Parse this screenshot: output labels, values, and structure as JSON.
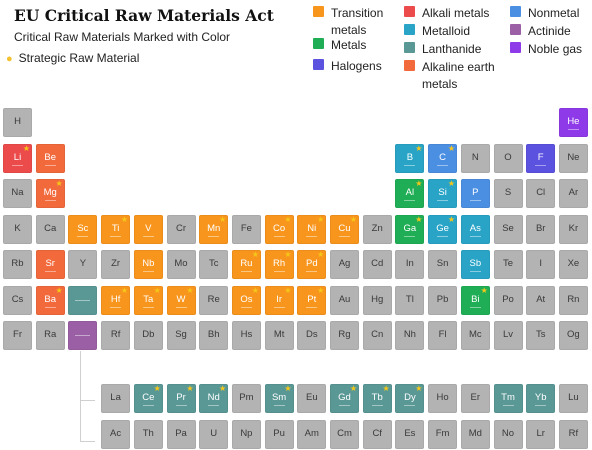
{
  "title": "EU Critical Raw Materials Act",
  "subtitle": "Critical Raw Materials Marked with Color",
  "strategic_label": "Strategic Raw Material",
  "colors": {
    "transition": "#f8951d",
    "alkali": "#ec4b4b",
    "nonmetal": "#4b8fe2",
    "metals": "#1fae55",
    "metalloid": "#29a4c7",
    "actinide": "#9a5fa4",
    "halogen": "#5b52e0",
    "lanthanide": "#5a9896",
    "noble": "#8f3ae8",
    "alkaline": "#f2693c",
    "neutral": "#b3b3b3",
    "star": "#f5c71a"
  },
  "legend": [
    {
      "key": "transition",
      "label": "Transition metals"
    },
    {
      "key": "alkali",
      "label": "Alkali metals"
    },
    {
      "key": "nonmetal",
      "label": "Nonmetal"
    },
    {
      "key": "metals",
      "label": "Metals"
    },
    {
      "key": "metalloid",
      "label": "Metalloid"
    },
    {
      "key": "actinide",
      "label": "Actinide"
    },
    {
      "key": "halogen",
      "label": "Halogens"
    },
    {
      "key": "lanthanide",
      "label": "Lanthanide"
    },
    {
      "key": "noble",
      "label": "Noble gas"
    },
    {
      "key": "alkaline",
      "label": "Alkaline earth metals"
    }
  ],
  "elements": [
    {
      "s": "H",
      "r": 1,
      "c": 1
    },
    {
      "s": "He",
      "r": 1,
      "c": 18,
      "cat": "noble"
    },
    {
      "s": "Li",
      "r": 2,
      "c": 1,
      "cat": "alkali",
      "star": true
    },
    {
      "s": "Be",
      "r": 2,
      "c": 2,
      "cat": "alkaline"
    },
    {
      "s": "B",
      "r": 2,
      "c": 13,
      "cat": "metalloid",
      "star": true
    },
    {
      "s": "C",
      "r": 2,
      "c": 14,
      "cat": "nonmetal",
      "star": true
    },
    {
      "s": "N",
      "r": 2,
      "c": 15
    },
    {
      "s": "O",
      "r": 2,
      "c": 16
    },
    {
      "s": "F",
      "r": 2,
      "c": 17,
      "cat": "halogen"
    },
    {
      "s": "Ne",
      "r": 2,
      "c": 18
    },
    {
      "s": "Na",
      "r": 3,
      "c": 1
    },
    {
      "s": "Mg",
      "r": 3,
      "c": 2,
      "cat": "alkaline",
      "star": true
    },
    {
      "s": "Al",
      "r": 3,
      "c": 13,
      "cat": "metals",
      "star": true
    },
    {
      "s": "Si",
      "r": 3,
      "c": 14,
      "cat": "metalloid",
      "star": true
    },
    {
      "s": "P",
      "r": 3,
      "c": 15,
      "cat": "nonmetal"
    },
    {
      "s": "S",
      "r": 3,
      "c": 16
    },
    {
      "s": "Cl",
      "r": 3,
      "c": 17
    },
    {
      "s": "Ar",
      "r": 3,
      "c": 18
    },
    {
      "s": "K",
      "r": 4,
      "c": 1
    },
    {
      "s": "Ca",
      "r": 4,
      "c": 2
    },
    {
      "s": "Sc",
      "r": 4,
      "c": 3,
      "cat": "transition"
    },
    {
      "s": "Ti",
      "r": 4,
      "c": 4,
      "cat": "transition",
      "star": true
    },
    {
      "s": "V",
      "r": 4,
      "c": 5,
      "cat": "transition"
    },
    {
      "s": "Cr",
      "r": 4,
      "c": 6
    },
    {
      "s": "Mn",
      "r": 4,
      "c": 7,
      "cat": "transition",
      "star": true
    },
    {
      "s": "Fe",
      "r": 4,
      "c": 8
    },
    {
      "s": "Co",
      "r": 4,
      "c": 9,
      "cat": "transition",
      "star": true
    },
    {
      "s": "Ni",
      "r": 4,
      "c": 10,
      "cat": "transition",
      "star": true
    },
    {
      "s": "Cu",
      "r": 4,
      "c": 11,
      "cat": "transition",
      "star": true
    },
    {
      "s": "Zn",
      "r": 4,
      "c": 12
    },
    {
      "s": "Ga",
      "r": 4,
      "c": 13,
      "cat": "metals",
      "star": true
    },
    {
      "s": "Ge",
      "r": 4,
      "c": 14,
      "cat": "metalloid",
      "star": true
    },
    {
      "s": "As",
      "r": 4,
      "c": 15,
      "cat": "metalloid"
    },
    {
      "s": "Se",
      "r": 4,
      "c": 16
    },
    {
      "s": "Br",
      "r": 4,
      "c": 17
    },
    {
      "s": "Kr",
      "r": 4,
      "c": 18
    },
    {
      "s": "Rb",
      "r": 5,
      "c": 1
    },
    {
      "s": "Sr",
      "r": 5,
      "c": 2,
      "cat": "alkaline"
    },
    {
      "s": "Y",
      "r": 5,
      "c": 3
    },
    {
      "s": "Zr",
      "r": 5,
      "c": 4
    },
    {
      "s": "Nb",
      "r": 5,
      "c": 5,
      "cat": "transition"
    },
    {
      "s": "Mo",
      "r": 5,
      "c": 6
    },
    {
      "s": "Tc",
      "r": 5,
      "c": 7
    },
    {
      "s": "Ru",
      "r": 5,
      "c": 8,
      "cat": "transition",
      "star": true
    },
    {
      "s": "Rh",
      "r": 5,
      "c": 9,
      "cat": "transition",
      "star": true
    },
    {
      "s": "Pd",
      "r": 5,
      "c": 10,
      "cat": "transition",
      "star": true
    },
    {
      "s": "Ag",
      "r": 5,
      "c": 11
    },
    {
      "s": "Cd",
      "r": 5,
      "c": 12
    },
    {
      "s": "In",
      "r": 5,
      "c": 13
    },
    {
      "s": "Sn",
      "r": 5,
      "c": 14
    },
    {
      "s": "Sb",
      "r": 5,
      "c": 15,
      "cat": "metalloid"
    },
    {
      "s": "Te",
      "r": 5,
      "c": 16
    },
    {
      "s": "I",
      "r": 5,
      "c": 17
    },
    {
      "s": "Xe",
      "r": 5,
      "c": 18
    },
    {
      "s": "Cs",
      "r": 6,
      "c": 1
    },
    {
      "s": "Ba",
      "r": 6,
      "c": 2,
      "cat": "alkaline",
      "star": true
    },
    {
      "s": "",
      "r": 6,
      "c": 3,
      "cat": "lanthanide",
      "dots": true
    },
    {
      "s": "Hf",
      "r": 6,
      "c": 4,
      "cat": "transition",
      "star": true
    },
    {
      "s": "Ta",
      "r": 6,
      "c": 5,
      "cat": "transition",
      "star": true
    },
    {
      "s": "W",
      "r": 6,
      "c": 6,
      "cat": "transition",
      "star": true
    },
    {
      "s": "Re",
      "r": 6,
      "c": 7
    },
    {
      "s": "Os",
      "r": 6,
      "c": 8,
      "cat": "transition",
      "star": true
    },
    {
      "s": "Ir",
      "r": 6,
      "c": 9,
      "cat": "transition",
      "star": true
    },
    {
      "s": "Pt",
      "r": 6,
      "c": 10,
      "cat": "transition",
      "star": true
    },
    {
      "s": "Au",
      "r": 6,
      "c": 11
    },
    {
      "s": "Hg",
      "r": 6,
      "c": 12
    },
    {
      "s": "Tl",
      "r": 6,
      "c": 13
    },
    {
      "s": "Pb",
      "r": 6,
      "c": 14
    },
    {
      "s": "Bi",
      "r": 6,
      "c": 15,
      "cat": "metals",
      "star": true
    },
    {
      "s": "Po",
      "r": 6,
      "c": 16
    },
    {
      "s": "At",
      "r": 6,
      "c": 17
    },
    {
      "s": "Rn",
      "r": 6,
      "c": 18
    },
    {
      "s": "Fr",
      "r": 7,
      "c": 1
    },
    {
      "s": "Ra",
      "r": 7,
      "c": 2
    },
    {
      "s": "",
      "r": 7,
      "c": 3,
      "cat": "actinide",
      "dots": true
    },
    {
      "s": "Rf",
      "r": 7,
      "c": 4
    },
    {
      "s": "Db",
      "r": 7,
      "c": 5
    },
    {
      "s": "Sg",
      "r": 7,
      "c": 6
    },
    {
      "s": "Bh",
      "r": 7,
      "c": 7
    },
    {
      "s": "Hs",
      "r": 7,
      "c": 8
    },
    {
      "s": "Mt",
      "r": 7,
      "c": 9
    },
    {
      "s": "Ds",
      "r": 7,
      "c": 10
    },
    {
      "s": "Rg",
      "r": 7,
      "c": 11
    },
    {
      "s": "Cn",
      "r": 7,
      "c": 12
    },
    {
      "s": "Nh",
      "r": 7,
      "c": 13
    },
    {
      "s": "Fl",
      "r": 7,
      "c": 14
    },
    {
      "s": "Mc",
      "r": 7,
      "c": 15
    },
    {
      "s": "Lv",
      "r": 7,
      "c": 16
    },
    {
      "s": "Ts",
      "r": 7,
      "c": 17
    },
    {
      "s": "Og",
      "r": 7,
      "c": 18
    },
    {
      "s": "La",
      "r": 8,
      "c": 4
    },
    {
      "s": "Ce",
      "r": 8,
      "c": 5,
      "cat": "lanthanide",
      "star": true
    },
    {
      "s": "Pr",
      "r": 8,
      "c": 6,
      "cat": "lanthanide",
      "star": true
    },
    {
      "s": "Nd",
      "r": 8,
      "c": 7,
      "cat": "lanthanide",
      "star": true
    },
    {
      "s": "Pm",
      "r": 8,
      "c": 8
    },
    {
      "s": "Sm",
      "r": 8,
      "c": 9,
      "cat": "lanthanide",
      "star": true
    },
    {
      "s": "Eu",
      "r": 8,
      "c": 10
    },
    {
      "s": "Gd",
      "r": 8,
      "c": 11,
      "cat": "lanthanide",
      "star": true
    },
    {
      "s": "Tb",
      "r": 8,
      "c": 12,
      "cat": "lanthanide",
      "star": true
    },
    {
      "s": "Dy",
      "r": 8,
      "c": 13,
      "cat": "lanthanide",
      "star": true
    },
    {
      "s": "Ho",
      "r": 8,
      "c": 14
    },
    {
      "s": "Er",
      "r": 8,
      "c": 15
    },
    {
      "s": "Tm",
      "r": 8,
      "c": 16,
      "cat": "lanthanide"
    },
    {
      "s": "Yb",
      "r": 8,
      "c": 17,
      "cat": "lanthanide"
    },
    {
      "s": "Lu",
      "r": 8,
      "c": 18
    },
    {
      "s": "Ac",
      "r": 9,
      "c": 4
    },
    {
      "s": "Th",
      "r": 9,
      "c": 5
    },
    {
      "s": "Pa",
      "r": 9,
      "c": 6
    },
    {
      "s": "U",
      "r": 9,
      "c": 7
    },
    {
      "s": "Np",
      "r": 9,
      "c": 8
    },
    {
      "s": "Pu",
      "r": 9,
      "c": 9
    },
    {
      "s": "Am",
      "r": 9,
      "c": 10
    },
    {
      "s": "Cm",
      "r": 9,
      "c": 11
    },
    {
      "s": "Cf",
      "r": 9,
      "c": 12
    },
    {
      "s": "Es",
      "r": 9,
      "c": 13
    },
    {
      "s": "Fm",
      "r": 9,
      "c": 14
    },
    {
      "s": "Md",
      "r": 9,
      "c": 15
    },
    {
      "s": "No",
      "r": 9,
      "c": 16
    },
    {
      "s": "Lr",
      "r": 9,
      "c": 17
    },
    {
      "s": "Rf",
      "r": 9,
      "c": 18
    }
  ]
}
